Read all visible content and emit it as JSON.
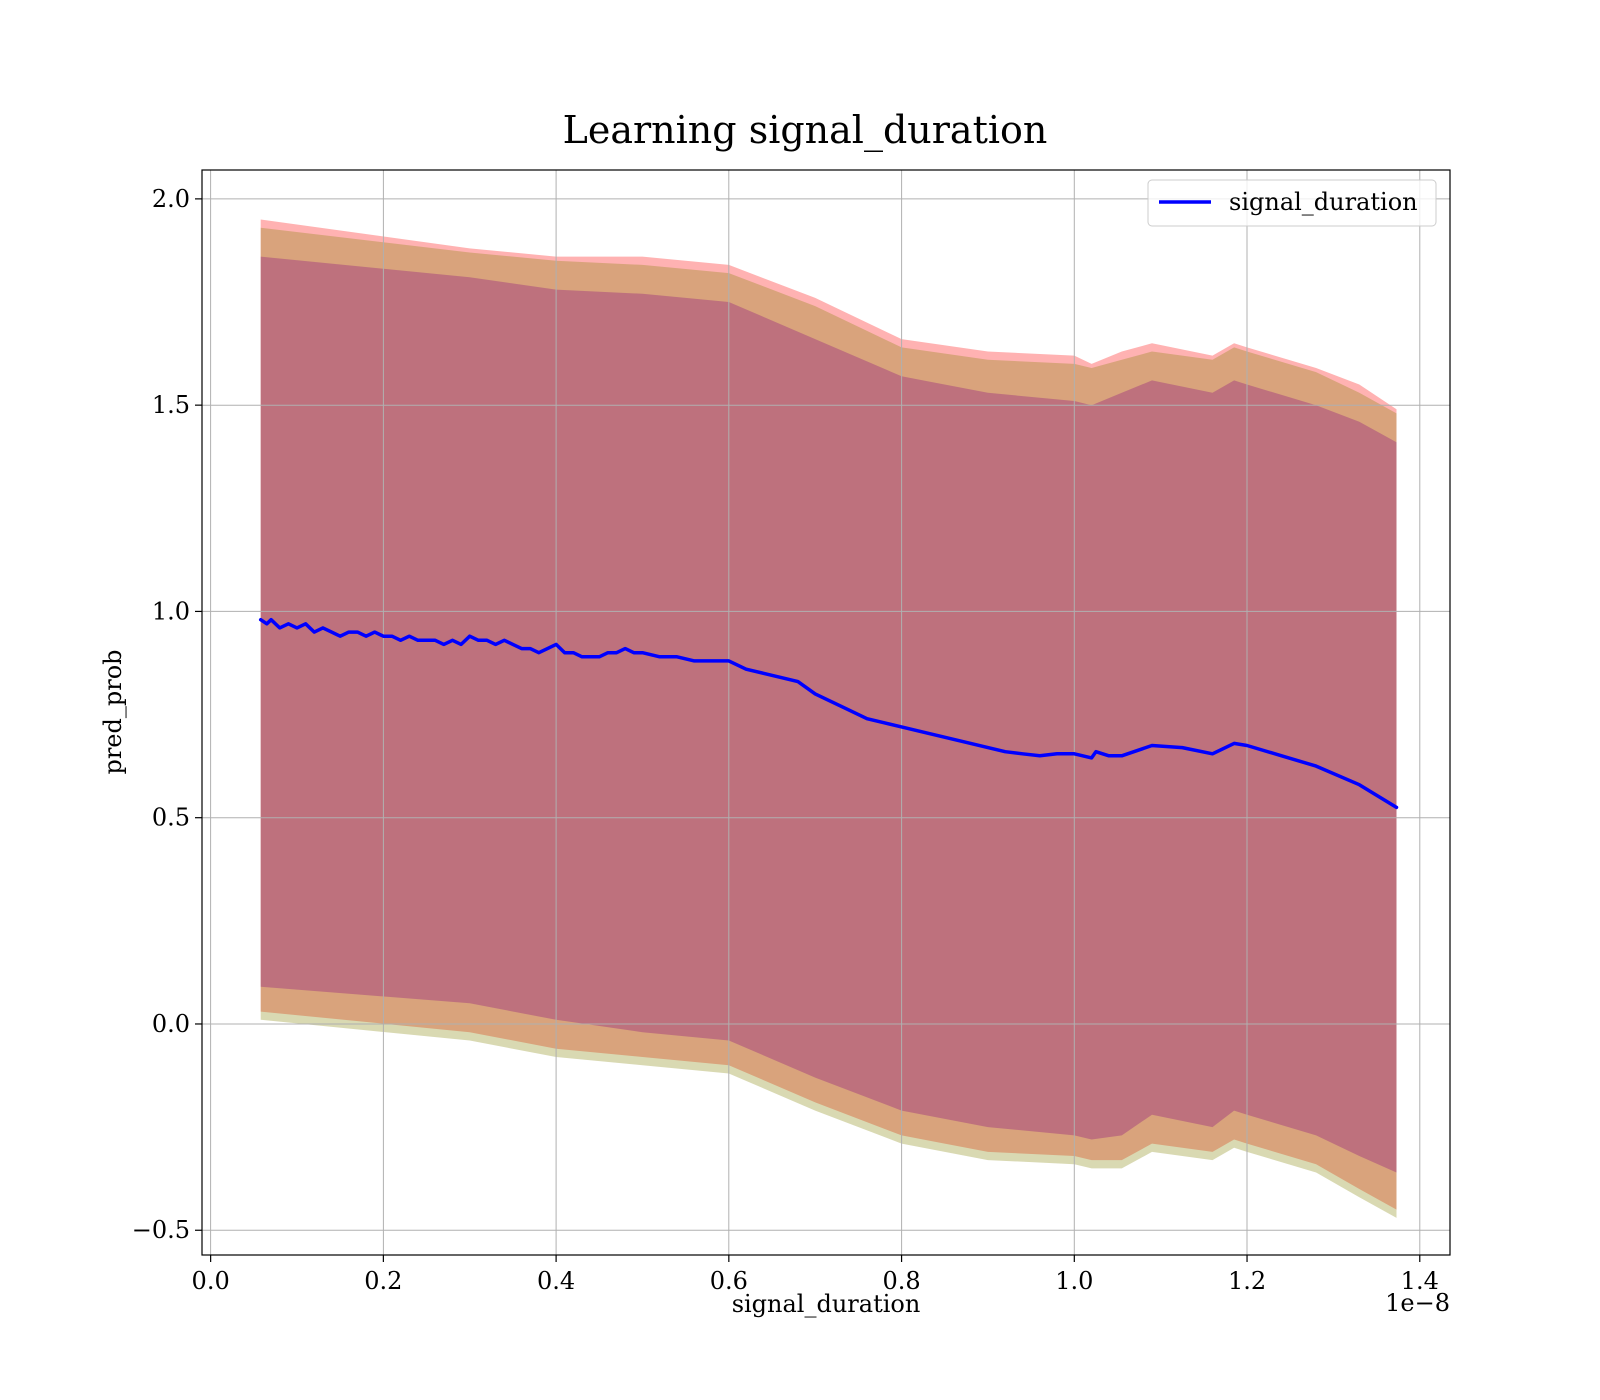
{
  "chart_data": {
    "type": "line",
    "title": "Learning signal_duration",
    "xlabel": "signal_duration",
    "ylabel": "pred_prob",
    "x_offset_label": "1e−8",
    "xlim": [
      -0.01,
      1.435
    ],
    "ylim": [
      -0.56,
      2.07
    ],
    "x_ticks": [
      0.0,
      0.2,
      0.4,
      0.6,
      0.8,
      1.0,
      1.2,
      1.4
    ],
    "x_tick_labels": [
      "0.0",
      "0.2",
      "0.4",
      "0.6",
      "0.8",
      "1.0",
      "1.2",
      "1.4"
    ],
    "y_ticks": [
      -0.5,
      0.0,
      0.5,
      1.0,
      1.5,
      2.0
    ],
    "y_tick_labels": [
      "−0.5",
      "0.0",
      "0.5",
      "1.0",
      "1.5",
      "2.0"
    ],
    "grid": true,
    "legend_position": "top-right",
    "series": [
      {
        "name": "signal_duration",
        "color": "#0000ff",
        "x": [
          0.058,
          0.065,
          0.07,
          0.08,
          0.09,
          0.1,
          0.11,
          0.12,
          0.13,
          0.14,
          0.15,
          0.16,
          0.17,
          0.18,
          0.19,
          0.2,
          0.21,
          0.22,
          0.23,
          0.24,
          0.25,
          0.26,
          0.27,
          0.28,
          0.29,
          0.3,
          0.31,
          0.32,
          0.33,
          0.34,
          0.35,
          0.36,
          0.37,
          0.38,
          0.39,
          0.4,
          0.41,
          0.42,
          0.43,
          0.44,
          0.45,
          0.46,
          0.47,
          0.48,
          0.49,
          0.5,
          0.52,
          0.54,
          0.56,
          0.58,
          0.6,
          0.62,
          0.64,
          0.66,
          0.68,
          0.7,
          0.72,
          0.74,
          0.76,
          0.78,
          0.8,
          0.82,
          0.84,
          0.86,
          0.88,
          0.9,
          0.92,
          0.94,
          0.96,
          0.98,
          1.0,
          1.02,
          1.025,
          1.04,
          1.055,
          1.09,
          1.125,
          1.16,
          1.185,
          1.2,
          1.24,
          1.28,
          1.33,
          1.373
        ],
        "values": [
          0.98,
          0.97,
          0.98,
          0.96,
          0.97,
          0.96,
          0.97,
          0.95,
          0.96,
          0.95,
          0.94,
          0.95,
          0.95,
          0.94,
          0.95,
          0.94,
          0.94,
          0.93,
          0.94,
          0.93,
          0.93,
          0.93,
          0.92,
          0.93,
          0.92,
          0.94,
          0.93,
          0.93,
          0.92,
          0.93,
          0.92,
          0.91,
          0.91,
          0.9,
          0.91,
          0.92,
          0.9,
          0.9,
          0.89,
          0.89,
          0.89,
          0.9,
          0.9,
          0.91,
          0.9,
          0.9,
          0.89,
          0.89,
          0.88,
          0.88,
          0.88,
          0.86,
          0.85,
          0.84,
          0.83,
          0.8,
          0.78,
          0.76,
          0.74,
          0.73,
          0.72,
          0.71,
          0.7,
          0.69,
          0.68,
          0.67,
          0.66,
          0.655,
          0.65,
          0.655,
          0.655,
          0.645,
          0.66,
          0.65,
          0.65,
          0.675,
          0.67,
          0.655,
          0.68,
          0.675,
          0.65,
          0.625,
          0.58,
          0.525
        ]
      }
    ],
    "bands": [
      {
        "color": "#ff0000",
        "opacity": 0.3,
        "x": [
          0.058,
          0.3,
          0.4,
          0.5,
          0.6,
          0.7,
          0.8,
          0.9,
          1.0,
          1.02,
          1.055,
          1.09,
          1.16,
          1.185,
          1.2,
          1.28,
          1.33,
          1.373
        ],
        "upper": [
          1.95,
          1.88,
          1.86,
          1.86,
          1.84,
          1.76,
          1.66,
          1.63,
          1.62,
          1.6,
          1.63,
          1.65,
          1.62,
          1.65,
          1.64,
          1.59,
          1.55,
          1.49
        ],
        "lower": [
          0.03,
          -0.02,
          -0.06,
          -0.08,
          -0.1,
          -0.19,
          -0.27,
          -0.31,
          -0.32,
          -0.33,
          -0.33,
          -0.29,
          -0.31,
          -0.28,
          -0.29,
          -0.34,
          -0.4,
          -0.45
        ]
      },
      {
        "color": "#808000",
        "opacity": 0.3,
        "x": [
          0.058,
          0.3,
          0.4,
          0.5,
          0.6,
          0.7,
          0.8,
          0.9,
          1.0,
          1.02,
          1.055,
          1.09,
          1.16,
          1.185,
          1.2,
          1.28,
          1.33,
          1.373
        ],
        "upper": [
          1.93,
          1.87,
          1.85,
          1.84,
          1.82,
          1.74,
          1.64,
          1.61,
          1.6,
          1.59,
          1.61,
          1.63,
          1.61,
          1.64,
          1.63,
          1.58,
          1.53,
          1.48
        ],
        "lower": [
          0.01,
          -0.04,
          -0.08,
          -0.1,
          -0.12,
          -0.21,
          -0.29,
          -0.33,
          -0.34,
          -0.35,
          -0.35,
          -0.31,
          -0.33,
          -0.3,
          -0.31,
          -0.36,
          -0.42,
          -0.47
        ]
      },
      {
        "color": "#800080",
        "opacity": 0.3,
        "x": [
          0.058,
          0.3,
          0.4,
          0.5,
          0.6,
          0.7,
          0.8,
          0.9,
          1.0,
          1.02,
          1.055,
          1.09,
          1.16,
          1.185,
          1.2,
          1.28,
          1.33,
          1.373
        ],
        "upper": [
          1.86,
          1.81,
          1.78,
          1.77,
          1.75,
          1.66,
          1.57,
          1.53,
          1.51,
          1.5,
          1.53,
          1.56,
          1.53,
          1.56,
          1.55,
          1.5,
          1.46,
          1.41
        ],
        "lower": [
          0.09,
          0.05,
          0.01,
          -0.02,
          -0.04,
          -0.13,
          -0.21,
          -0.25,
          -0.27,
          -0.28,
          -0.27,
          -0.22,
          -0.25,
          -0.21,
          -0.22,
          -0.27,
          -0.32,
          -0.36
        ]
      }
    ]
  }
}
